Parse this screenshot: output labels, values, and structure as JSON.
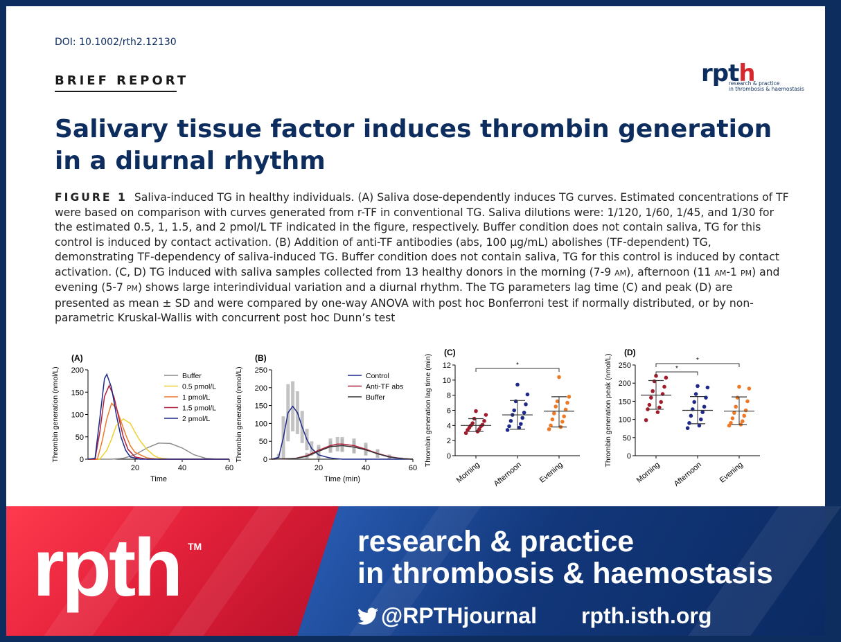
{
  "doi": "DOI: 10.1002/rth2.12130",
  "section_label": "BRIEF REPORT",
  "journal_logo_small": {
    "mark_a": "rpt",
    "mark_b": "h",
    "line1": "research & practice",
    "line2": "in thrombosis & haemostasis"
  },
  "title": "Salivary tissue factor induces thrombin generation in a diurnal rhythm",
  "figure_label": "FIGURE 1",
  "caption_parts": {
    "p1": "Saliva-induced TG in healthy individuals. (A) Saliva dose-dependently induces TG curves. Estimated concentrations of TF were based on comparison with curves generated from r-TF in conventional TG. Saliva dilutions were: 1/120, 1/60, 1/45, and 1/30 for the estimated 0.5, 1, 1.5, and 2 pmol/L TF indicated in the figure, respectively. Buffer condition does not contain saliva, TG for this control is induced by contact activation. (B) Addition of anti-TF antibodies (abs, 100 ",
    "mu": "µ",
    "p2": "g/mL) abolishes (TF-dependent) TG, demonstrating TF-dependency of saliva-induced TG. Buffer condition does not contain saliva, TG for this control is induced by contact activation. (C, D) TG induced with saliva samples collected from 13 healthy donors in the morning (7-9 ",
    "am1": "AM",
    "p3": "), afternoon (11 ",
    "am2": "AM",
    "p4": "-1 ",
    "pm1": "PM",
    "p5": ") and evening (5-7 ",
    "pm2": "PM",
    "p6": ") shows large interindividual variation and a diurnal rhythm. The TG parameters lag time (C) and peak (D) are presented as mean ± SD and were compared by one-way ANOVA with post hoc Bonferroni test if normally distributed, or by non-parametric Kruskal-Wallis with concurrent post hoc Dunn’s test"
  },
  "banner": {
    "logo": "rpth",
    "tm": "TM",
    "line1": "research & practice",
    "line2": "in thrombosis & haemostasis",
    "twitter": "@RPTHjournal",
    "website": "rpth.isth.org",
    "twitter_icon": "twitter-bird-icon"
  },
  "chart_data": [
    {
      "panel": "(A)",
      "type": "line",
      "xlabel": "Time",
      "ylabel": "Thrombin generation (nmol/L)",
      "xlim": [
        0,
        60
      ],
      "ylim": [
        0,
        200
      ],
      "xticks": [
        20,
        40,
        60
      ],
      "yticks": [
        0,
        50,
        100,
        150,
        200
      ],
      "legend_position": "top-right",
      "series": [
        {
          "name": "Buffer",
          "color": "#8c8c8c",
          "x": [
            0,
            10,
            15,
            20,
            25,
            30,
            35,
            40,
            45,
            50,
            55,
            60
          ],
          "y": [
            0,
            0,
            2,
            10,
            25,
            36,
            35,
            25,
            10,
            2,
            0,
            0
          ]
        },
        {
          "name": "0.5 pmol/L",
          "color": "#f0d030",
          "x": [
            0,
            5,
            8,
            10,
            12,
            15,
            18,
            20,
            22,
            25,
            28,
            30,
            35,
            40,
            60
          ],
          "y": [
            0,
            0,
            20,
            45,
            75,
            90,
            80,
            60,
            42,
            22,
            8,
            3,
            0,
            0,
            0
          ]
        },
        {
          "name": "1 pmol/L",
          "color": "#ee7a28",
          "x": [
            0,
            4,
            6,
            8,
            10,
            12,
            14,
            16,
            18,
            20,
            25,
            30,
            60
          ],
          "y": [
            0,
            0,
            40,
            90,
            125,
            115,
            85,
            55,
            30,
            15,
            3,
            0,
            0
          ]
        },
        {
          "name": "1.5 pmol/L",
          "color": "#b11f3c",
          "x": [
            0,
            3,
            5,
            7,
            9,
            11,
            13,
            15,
            17,
            20,
            25,
            60
          ],
          "y": [
            0,
            0,
            60,
            140,
            165,
            140,
            95,
            50,
            22,
            5,
            0,
            0
          ]
        },
        {
          "name": "2 pmol/L",
          "color": "#1f2a88",
          "x": [
            0,
            3,
            5,
            7,
            8,
            10,
            12,
            14,
            16,
            18,
            22,
            60
          ],
          "y": [
            0,
            2,
            90,
            180,
            190,
            160,
            100,
            50,
            20,
            5,
            0,
            0
          ]
        }
      ]
    },
    {
      "panel": "(B)",
      "type": "line",
      "xlabel": "Time (min)",
      "ylabel": "Thrombin generation (nmol/L)",
      "xlim": [
        0,
        60
      ],
      "ylim": [
        0,
        250
      ],
      "xticks": [
        20,
        40,
        60
      ],
      "yticks": [
        0,
        50,
        100,
        150,
        200,
        250
      ],
      "legend_position": "top-right",
      "series": [
        {
          "name": "Control",
          "color": "#1f2a88",
          "x": [
            0,
            3,
            5,
            7,
            9,
            11,
            13,
            15,
            17,
            20,
            25,
            30,
            60
          ],
          "y": [
            0,
            5,
            60,
            130,
            148,
            130,
            90,
            55,
            30,
            12,
            3,
            0,
            0
          ],
          "err": [
            0,
            10,
            60,
            80,
            70,
            60,
            45,
            30,
            20,
            10,
            3,
            0,
            0
          ]
        },
        {
          "name": "Anti-TF abs",
          "color": "#b11f3c",
          "x": [
            0,
            10,
            15,
            20,
            25,
            28,
            30,
            35,
            40,
            45,
            50,
            55,
            60
          ],
          "y": [
            0,
            2,
            10,
            25,
            38,
            42,
            42,
            38,
            28,
            16,
            7,
            2,
            0
          ],
          "err": [
            0,
            2,
            8,
            15,
            20,
            20,
            20,
            20,
            18,
            12,
            6,
            3,
            0
          ]
        },
        {
          "name": "Buffer",
          "color": "#333333",
          "x": [
            0,
            10,
            15,
            20,
            25,
            30,
            35,
            40,
            45,
            50,
            55,
            60
          ],
          "y": [
            0,
            2,
            8,
            22,
            35,
            38,
            34,
            26,
            15,
            6,
            2,
            0
          ],
          "err": [
            0,
            2,
            6,
            12,
            16,
            18,
            18,
            15,
            10,
            5,
            2,
            0
          ]
        }
      ]
    },
    {
      "panel": "(C)",
      "type": "scatter",
      "ylabel": "Thrombin generation lag time (min)",
      "categories": [
        "Morning",
        "Afternoon",
        "Evening"
      ],
      "ylim": [
        0,
        12
      ],
      "yticks": [
        0,
        2,
        4,
        6,
        8,
        10,
        12
      ],
      "significance": [
        {
          "from": "Morning",
          "to": "Evening",
          "label": "*"
        }
      ],
      "series": [
        {
          "category": "Morning",
          "color": "#a01c2c",
          "mean": 4.0,
          "sd_low": 3.2,
          "sd_high": 4.9,
          "values": [
            3.0,
            3.2,
            3.4,
            3.5,
            3.7,
            3.9,
            4.0,
            4.1,
            4.3,
            4.6,
            4.9,
            5.4,
            5.9
          ]
        },
        {
          "category": "Afternoon",
          "color": "#1f2a88",
          "mean": 5.4,
          "sd_low": 3.5,
          "sd_high": 7.3,
          "values": [
            3.4,
            3.7,
            3.9,
            4.2,
            4.6,
            5.0,
            5.4,
            5.7,
            6.0,
            6.8,
            7.2,
            8.1,
            9.4
          ]
        },
        {
          "category": "Evening",
          "color": "#ee7a28",
          "mean": 5.9,
          "sd_low": 3.8,
          "sd_high": 7.8,
          "values": [
            3.5,
            3.8,
            4.0,
            4.5,
            4.8,
            5.2,
            5.6,
            6.1,
            6.5,
            7.0,
            7.2,
            7.8,
            10.4
          ]
        }
      ]
    },
    {
      "panel": "(D)",
      "type": "scatter",
      "ylabel": "Thrombin generation peak (nmol/L)",
      "categories": [
        "Morning",
        "Afternoon",
        "Evening"
      ],
      "ylim": [
        0,
        250
      ],
      "yticks": [
        0,
        50,
        100,
        150,
        200,
        250
      ],
      "significance": [
        {
          "from": "Morning",
          "to": "Afternoon",
          "label": "*"
        },
        {
          "from": "Morning",
          "to": "Evening",
          "label": "*"
        }
      ],
      "series": [
        {
          "category": "Morning",
          "color": "#a01c2c",
          "mean": 167,
          "sd_low": 128,
          "sd_high": 207,
          "values": [
            98,
            120,
            128,
            133,
            140,
            148,
            160,
            170,
            178,
            190,
            205,
            215,
            220
          ]
        },
        {
          "category": "Afternoon",
          "color": "#1f2a88",
          "mean": 125,
          "sd_low": 88,
          "sd_high": 163,
          "values": [
            76,
            83,
            90,
            100,
            110,
            120,
            128,
            135,
            148,
            160,
            170,
            188,
            192
          ]
        },
        {
          "category": "Evening",
          "color": "#ee7a28",
          "mean": 123,
          "sd_low": 86,
          "sd_high": 162,
          "values": [
            83,
            86,
            90,
            95,
            103,
            110,
            118,
            125,
            135,
            150,
            160,
            185,
            190
          ]
        }
      ]
    }
  ]
}
